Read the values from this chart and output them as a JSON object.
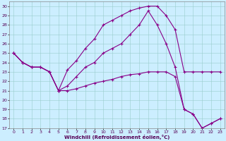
{
  "xlabel": "Windchill (Refroidissement éolien,°C)",
  "background_color": "#cceeff",
  "line_color": "#880088",
  "xlim": [
    -0.5,
    23.5
  ],
  "ylim": [
    17,
    30.5
  ],
  "yticks": [
    17,
    18,
    19,
    20,
    21,
    22,
    23,
    24,
    25,
    26,
    27,
    28,
    29,
    30
  ],
  "xticks": [
    0,
    1,
    2,
    3,
    4,
    5,
    6,
    7,
    8,
    9,
    10,
    11,
    12,
    13,
    14,
    15,
    16,
    17,
    18,
    19,
    20,
    21,
    22,
    23
  ],
  "curve1_x": [
    0,
    1,
    2,
    3,
    4,
    5,
    6,
    7,
    8,
    9,
    10,
    11,
    12,
    13,
    14,
    15,
    16,
    17,
    18,
    19,
    20,
    21,
    22,
    23
  ],
  "curve1_y": [
    25.0,
    24.0,
    23.5,
    23.5,
    23.0,
    21.0,
    23.2,
    24.2,
    25.5,
    26.5,
    28.0,
    28.5,
    29.0,
    29.5,
    29.8,
    30.0,
    30.0,
    29.0,
    27.5,
    23.0,
    23.0,
    23.0,
    23.0,
    23.0
  ],
  "curve2_x": [
    0,
    1,
    2,
    3,
    4,
    5,
    6,
    7,
    8,
    9,
    10,
    11,
    12,
    13,
    14,
    15,
    16,
    17,
    18,
    19,
    20,
    21,
    22,
    23
  ],
  "curve2_y": [
    25.0,
    24.0,
    23.5,
    23.5,
    23.0,
    21.0,
    21.5,
    22.5,
    23.5,
    24.0,
    25.0,
    25.5,
    26.0,
    27.0,
    28.0,
    29.5,
    28.0,
    26.0,
    23.5,
    19.0,
    18.5,
    17.0,
    17.5,
    18.0
  ],
  "curve3_x": [
    0,
    1,
    2,
    3,
    4,
    5,
    6,
    7,
    8,
    9,
    10,
    11,
    12,
    13,
    14,
    15,
    16,
    17,
    18,
    19,
    20,
    21,
    22,
    23
  ],
  "curve3_y": [
    25.0,
    24.0,
    23.5,
    23.5,
    23.0,
    21.0,
    21.0,
    21.2,
    21.5,
    21.8,
    22.0,
    22.2,
    22.5,
    22.7,
    22.8,
    23.0,
    23.0,
    23.0,
    22.5,
    19.0,
    18.5,
    17.0,
    17.5,
    18.0
  ]
}
